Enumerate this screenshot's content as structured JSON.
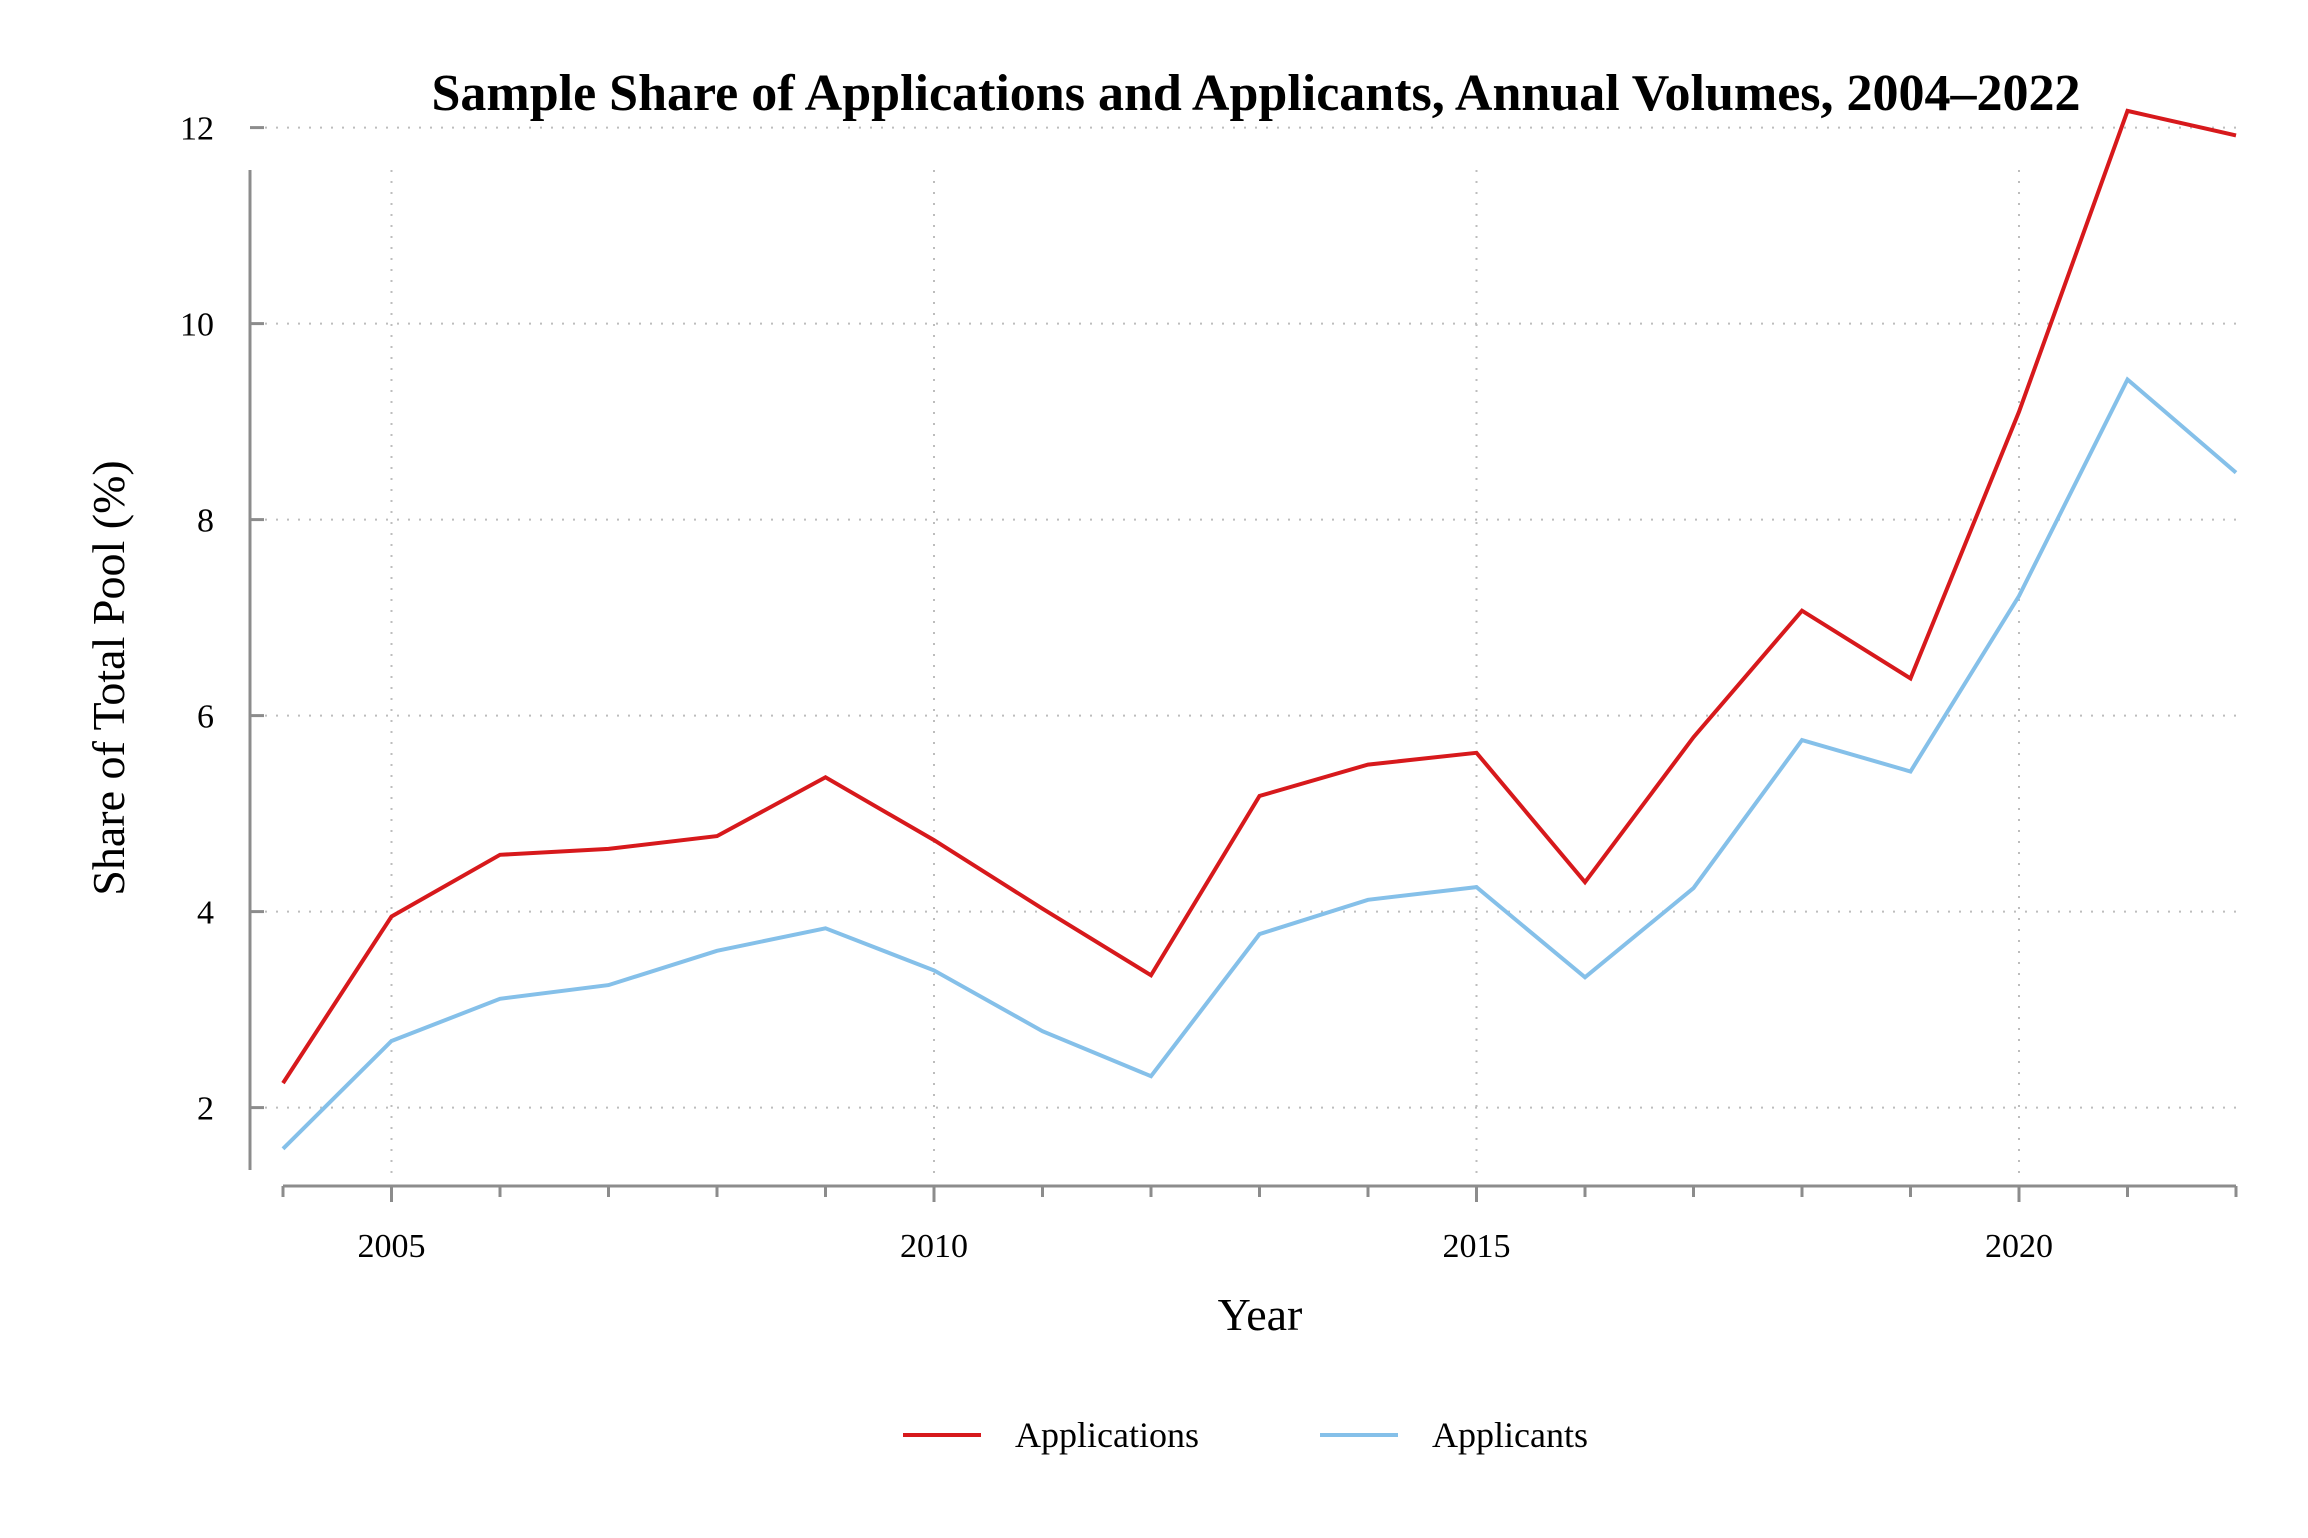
{
  "chart_data": {
    "type": "line",
    "title": "Sample Share of Applications and Applicants, Annual Volumes, 2004–2022",
    "xlabel": "Year",
    "ylabel": "Share of Total Pool (%)",
    "x": [
      2004,
      2005,
      2006,
      2007,
      2008,
      2009,
      2010,
      2011,
      2012,
      2013,
      2014,
      2015,
      2016,
      2017,
      2018,
      2019,
      2020,
      2021,
      2022
    ],
    "xlim": [
      2004,
      2022
    ],
    "ylim": [
      1.2,
      12.2
    ],
    "xticks": [
      2005,
      2010,
      2015,
      2020
    ],
    "xtick_labels": [
      "2005",
      "2010",
      "2015",
      "2020"
    ],
    "yticks": [
      2,
      4,
      6,
      8,
      10,
      12
    ],
    "ytick_labels": [
      "2",
      "4",
      "6",
      "8",
      "10",
      "12"
    ],
    "grid": true,
    "legend_position": "bottom",
    "series": [
      {
        "name": "Applications",
        "color": "#d7191c",
        "values": [
          2.25,
          3.95,
          4.58,
          4.64,
          4.77,
          5.37,
          4.73,
          4.03,
          3.35,
          5.18,
          5.5,
          5.62,
          4.3,
          5.78,
          7.07,
          6.38,
          9.1,
          12.17,
          11.92
        ]
      },
      {
        "name": "Applicants",
        "color": "#85c0e9",
        "values": [
          1.58,
          2.68,
          3.11,
          3.25,
          3.6,
          3.83,
          3.4,
          2.78,
          2.32,
          3.77,
          4.12,
          4.25,
          3.33,
          4.24,
          5.75,
          5.43,
          7.22,
          9.43,
          8.48
        ]
      }
    ]
  }
}
